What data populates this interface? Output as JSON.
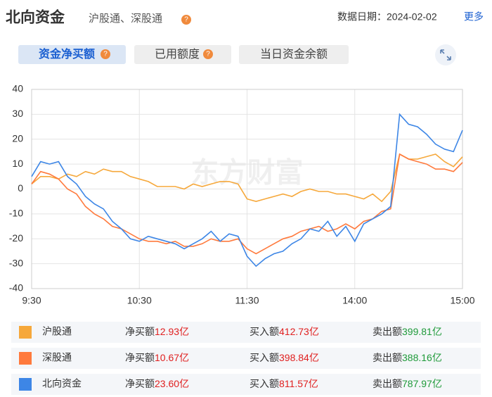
{
  "header": {
    "title": "北向资金",
    "subtitle": "沪股通、深股通",
    "date": "数据日期：2024-02-02",
    "more": "更多"
  },
  "tabs": [
    "资金净买额",
    "已用额度",
    "当日资金余额"
  ],
  "chart_data": {
    "type": "line",
    "watermark": "东方财富",
    "categories": [
      "9:30",
      null,
      null,
      null,
      null,
      null,
      null,
      null,
      null,
      null,
      null,
      null,
      "10:30",
      null,
      null,
      null,
      null,
      null,
      null,
      null,
      null,
      null,
      null,
      null,
      "11:30",
      null,
      null,
      null,
      null,
      null,
      null,
      null,
      null,
      null,
      null,
      null,
      "14:00",
      null,
      null,
      null,
      null,
      null,
      null,
      null,
      null,
      null,
      null,
      null,
      "15:00"
    ],
    "ylim": [
      -40,
      40
    ],
    "yticks": [
      -40,
      -30,
      -20,
      -10,
      0,
      10,
      20,
      30,
      40
    ],
    "grid": true,
    "series": [
      {
        "name": "沪股通",
        "color": "#f6a83b",
        "values": [
          2,
          5,
          5,
          4,
          6,
          5,
          7,
          6,
          8,
          7,
          7,
          5,
          4,
          3,
          1,
          1,
          1,
          0,
          2,
          1,
          2,
          3,
          3,
          2,
          -4,
          -5,
          -4,
          -3,
          -2,
          -3,
          -1,
          0,
          -1,
          -1,
          -2,
          -2,
          -3,
          -4,
          -2,
          -5,
          -1,
          14,
          12,
          12,
          13,
          14,
          11,
          9,
          12.93
        ]
      },
      {
        "name": "深股通",
        "color": "#ff7a3d",
        "values": [
          2,
          7,
          6,
          4,
          0,
          -2,
          -7,
          -10,
          -12,
          -15,
          -16,
          -18,
          -20,
          -21,
          -21,
          -22,
          -21,
          -23,
          -23,
          -22,
          -20,
          -21,
          -21,
          -20,
          -24,
          -26,
          -24,
          -22,
          -20,
          -19,
          -17,
          -16,
          -15,
          -17,
          -16,
          -14,
          -16,
          -13,
          -12,
          -9,
          -8,
          14,
          12,
          11,
          10,
          8,
          8,
          7,
          10.67
        ]
      },
      {
        "name": "北向资金",
        "color": "#3d86e6",
        "values": [
          5,
          11,
          10,
          11,
          5,
          2,
          -3,
          -6,
          -8,
          -13,
          -16,
          -20,
          -21,
          -19,
          -20,
          -21,
          -22,
          -24,
          -22,
          -20,
          -17,
          -21,
          -18,
          -19,
          -27,
          -31,
          -28,
          -26,
          -25,
          -22,
          -20,
          -16,
          -17,
          -13,
          -19,
          -15,
          -21,
          -14,
          -12,
          -10,
          -7,
          30,
          26,
          25,
          22,
          18,
          16,
          15,
          23.6
        ]
      }
    ]
  },
  "summary": {
    "stat_labels": [
      "净买额",
      "买入额",
      "卖出额"
    ],
    "rows": [
      [
        "12.93亿",
        "412.73亿",
        "399.81亿"
      ],
      [
        "10.67亿",
        "398.84亿",
        "388.16亿"
      ],
      [
        "23.60亿",
        "811.57亿",
        "787.97亿"
      ]
    ]
  }
}
